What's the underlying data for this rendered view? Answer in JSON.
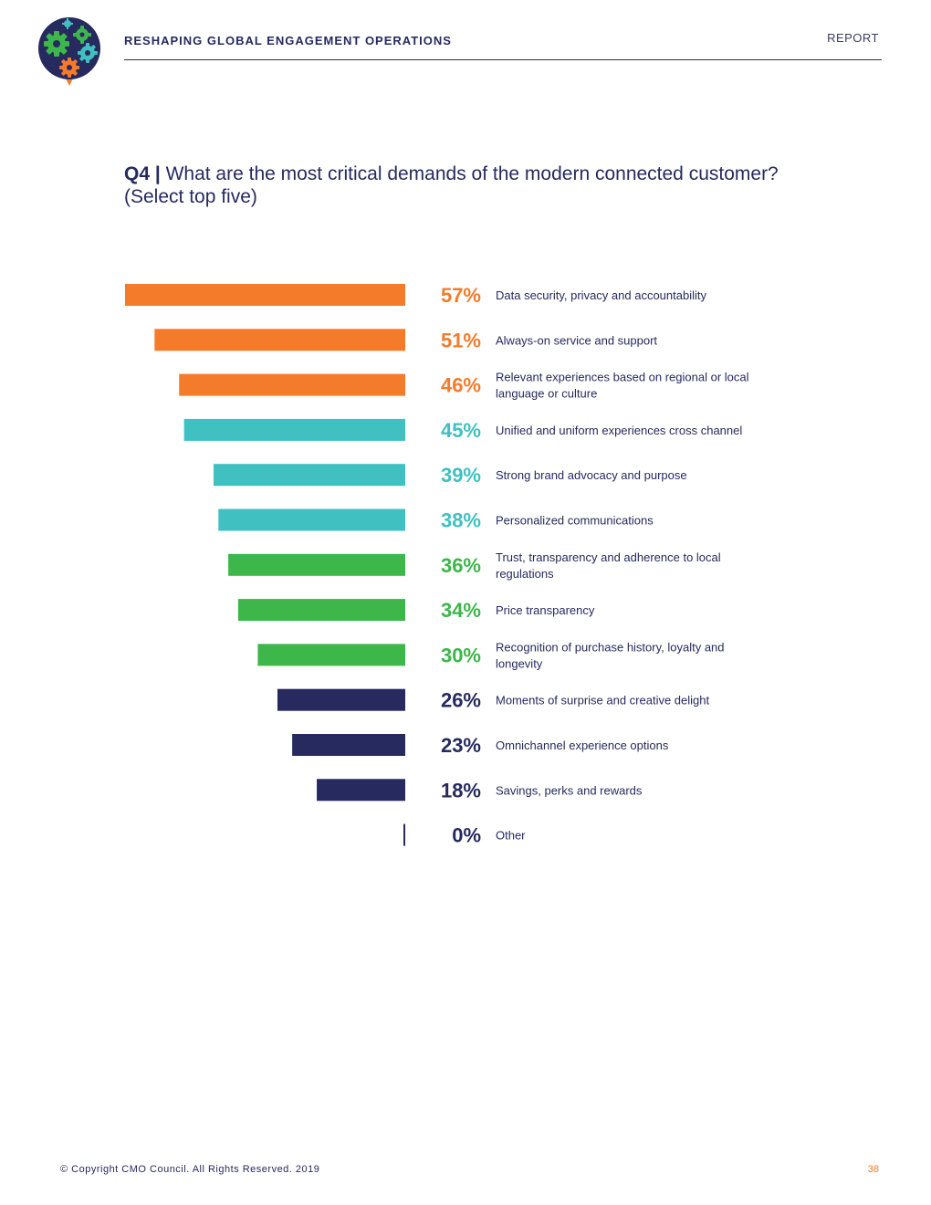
{
  "header": {
    "title": "RESHAPING GLOBAL ENGAGEMENT OPERATIONS",
    "report_label": "REPORT"
  },
  "question": {
    "number": "Q4 |",
    "text": "What are the most critical demands of the modern connected customer? (Select top five)"
  },
  "chart_data": {
    "type": "bar",
    "orientation": "horizontal",
    "title": "What are the most critical demands of the modern connected customer? (Select top five)",
    "xlim": [
      0,
      57
    ],
    "categories": [
      "Data security, privacy and accountability",
      "Always-on service and support",
      "Relevant experiences based on regional or local language or culture",
      "Unified and uniform experiences cross channel",
      "Strong brand advocacy and purpose",
      "Personalized communications",
      "Trust, transparency and adherence to local regulations",
      "Price transparency",
      "Recognition of purchase history, loyalty and longevity",
      "Moments of surprise and creative delight",
      "Omnichannel experience options",
      "Savings, perks and rewards",
      "Other"
    ],
    "values": [
      57,
      51,
      46,
      45,
      39,
      38,
      36,
      34,
      30,
      26,
      23,
      18,
      0
    ],
    "value_labels": [
      "57%",
      "51%",
      "46%",
      "45%",
      "39%",
      "38%",
      "36%",
      "34%",
      "30%",
      "26%",
      "23%",
      "18%",
      "0%"
    ],
    "bar_colors": [
      "#f47b2a",
      "#f47b2a",
      "#f47b2a",
      "#40c0c0",
      "#40c0c0",
      "#40c0c0",
      "#3db64a",
      "#3db64a",
      "#3db64a",
      "#262a5e",
      "#262a5e",
      "#262a5e",
      "#262a5e"
    ]
  },
  "footer": {
    "copyright": "© Copyright CMO Council. All Rights Reserved. 2019",
    "page_number": "38"
  },
  "colors": {
    "navy": "#262a5e",
    "orange": "#f47b2a",
    "teal": "#40c0c0",
    "green": "#3db64a"
  }
}
